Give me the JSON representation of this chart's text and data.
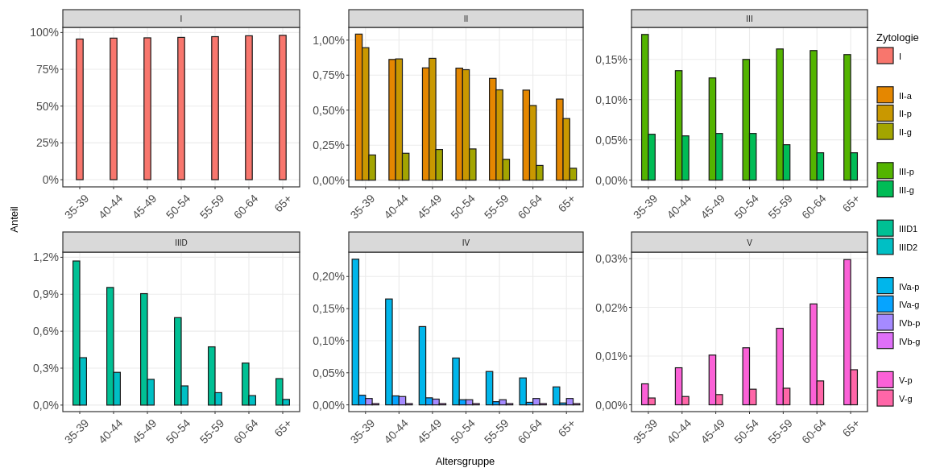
{
  "chart_data": [
    {
      "type": "bar",
      "title": "I",
      "ylabel": "Anteil",
      "legend_title": "Zytologie",
      "legend": "right",
      "grid": true,
      "categories": [
        "35-39",
        "40-44",
        "45-49",
        "50-54",
        "55-59",
        "60-64",
        "65+"
      ],
      "ylim": [
        -4.9,
        103.5
      ],
      "yticks": [
        {
          "value": 0,
          "label": "0%"
        },
        {
          "value": 25,
          "label": "25%"
        },
        {
          "value": 50,
          "label": "50%"
        },
        {
          "value": 75,
          "label": "75%"
        },
        {
          "value": 100,
          "label": "100%"
        }
      ],
      "series": [
        {
          "name": "I",
          "color": "#f8766d",
          "values": [
            95.6,
            96.2,
            96.4,
            96.7,
            97.2,
            97.8,
            98.1
          ]
        }
      ]
    },
    {
      "type": "bar",
      "title": "II",
      "legend": "right",
      "grid": true,
      "categories": [
        "35-39",
        "40-44",
        "45-49",
        "50-54",
        "55-59",
        "60-64",
        "65+"
      ],
      "ylim": [
        -0.048,
        1.091
      ],
      "yticks": [
        {
          "value": 0,
          "label": "0,00%"
        },
        {
          "value": 0.25,
          "label": "0,25%"
        },
        {
          "value": 0.5,
          "label": "0,50%"
        },
        {
          "value": 0.75,
          "label": "0,75%"
        },
        {
          "value": 1,
          "label": "1,00%"
        }
      ],
      "series": [
        {
          "name": "II-a",
          "color": "#e58700",
          "values": [
            1.043,
            0.862,
            0.802,
            0.8,
            0.727,
            0.643,
            0.579
          ]
        },
        {
          "name": "II-p",
          "color": "#c99800",
          "values": [
            0.946,
            0.866,
            0.87,
            0.789,
            0.645,
            0.533,
            0.44
          ]
        },
        {
          "name": "II-g",
          "color": "#a3a500",
          "values": [
            0.18,
            0.192,
            0.219,
            0.223,
            0.149,
            0.105,
            0.085
          ]
        }
      ]
    },
    {
      "type": "bar",
      "title": "III",
      "legend": "right",
      "grid": true,
      "categories": [
        "35-39",
        "40-44",
        "45-49",
        "50-54",
        "55-59",
        "60-64",
        "65+"
      ],
      "ylim": [
        -0.0084,
        0.1898
      ],
      "yticks": [
        {
          "value": 0,
          "label": "0,00%"
        },
        {
          "value": 0.05,
          "label": "0,05%"
        },
        {
          "value": 0.1,
          "label": "0,10%"
        },
        {
          "value": 0.15,
          "label": "0,15%"
        }
      ],
      "series": [
        {
          "name": "III-p",
          "color": "#53b400",
          "values": [
            0.181,
            0.136,
            0.127,
            0.15,
            0.163,
            0.161,
            0.156
          ]
        },
        {
          "name": "III-g",
          "color": "#00bc56",
          "values": [
            0.057,
            0.055,
            0.058,
            0.058,
            0.044,
            0.034,
            0.034
          ]
        }
      ]
    },
    {
      "type": "bar",
      "title": "IIID",
      "legend": "right",
      "grid": true,
      "categories": [
        "35-39",
        "40-44",
        "45-49",
        "50-54",
        "55-59",
        "60-64",
        "65+"
      ],
      "ylim": [
        -0.053,
        1.242
      ],
      "yticks": [
        {
          "value": 0,
          "label": "0,0%"
        },
        {
          "value": 0.3,
          "label": "0,3%"
        },
        {
          "value": 0.6,
          "label": "0,6%"
        },
        {
          "value": 0.9,
          "label": "0,9%"
        },
        {
          "value": 1.2,
          "label": "1,2%"
        }
      ],
      "series": [
        {
          "name": "IIID1",
          "color": "#00c094",
          "values": [
            1.17,
            0.955,
            0.905,
            0.71,
            0.473,
            0.341,
            0.215
          ]
        },
        {
          "name": "IIID2",
          "color": "#00bfc4",
          "values": [
            0.385,
            0.266,
            0.209,
            0.156,
            0.101,
            0.077,
            0.046
          ]
        }
      ]
    },
    {
      "type": "bar",
      "title": "IV",
      "xlabel": "Altersgruppe",
      "legend": "right",
      "grid": true,
      "categories": [
        "35-39",
        "40-44",
        "45-49",
        "50-54",
        "55-59",
        "60-64",
        "65+"
      ],
      "ylim": [
        -0.0105,
        0.238
      ],
      "yticks": [
        {
          "value": 0,
          "label": "0,00%"
        },
        {
          "value": 0.05,
          "label": "0,05%"
        },
        {
          "value": 0.1,
          "label": "0,10%"
        },
        {
          "value": 0.15,
          "label": "0,15%"
        },
        {
          "value": 0.2,
          "label": "0,20%"
        }
      ],
      "series": [
        {
          "name": "IVa-p",
          "color": "#00b6eb",
          "values": [
            0.227,
            0.165,
            0.122,
            0.073,
            0.052,
            0.042,
            0.028
          ]
        },
        {
          "name": "IVa-g",
          "color": "#06a4ff",
          "values": [
            0.015,
            0.014,
            0.011,
            0.008,
            0.005,
            0.004,
            0.003
          ]
        },
        {
          "name": "IVb-p",
          "color": "#a58aff",
          "values": [
            0.01,
            0.013,
            0.009,
            0.008,
            0.008,
            0.01,
            0.01
          ]
        },
        {
          "name": "IVb-g",
          "color": "#df70f8",
          "values": [
            0.002,
            0.002,
            0.002,
            0.002,
            0.002,
            0.002,
            0.002
          ]
        }
      ]
    },
    {
      "type": "bar",
      "title": "V",
      "legend": "right",
      "grid": true,
      "categories": [
        "35-39",
        "40-44",
        "45-49",
        "50-54",
        "55-59",
        "60-64",
        "65+"
      ],
      "ylim": [
        -0.0014,
        0.03133
      ],
      "yticks": [
        {
          "value": 0,
          "label": "0,00%"
        },
        {
          "value": 0.01,
          "label": "0,01%"
        },
        {
          "value": 0.02,
          "label": "0,02%"
        },
        {
          "value": 0.03,
          "label": "0,03%"
        }
      ],
      "series": [
        {
          "name": "V-p",
          "color": "#fb61d7",
          "values": [
            0.0043,
            0.0076,
            0.0102,
            0.0117,
            0.0157,
            0.0207,
            0.0298
          ]
        },
        {
          "name": "V-g",
          "color": "#ff66a8",
          "values": [
            0.0014,
            0.0017,
            0.0021,
            0.0032,
            0.0034,
            0.0049,
            0.0072
          ]
        }
      ]
    }
  ]
}
